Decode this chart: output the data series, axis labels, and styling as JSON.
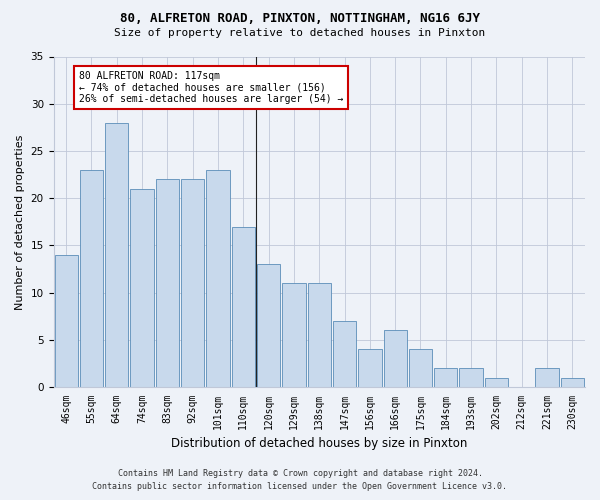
{
  "title1": "80, ALFRETON ROAD, PINXTON, NOTTINGHAM, NG16 6JY",
  "title2": "Size of property relative to detached houses in Pinxton",
  "xlabel": "Distribution of detached houses by size in Pinxton",
  "ylabel": "Number of detached properties",
  "categories": [
    "46sqm",
    "55sqm",
    "64sqm",
    "74sqm",
    "83sqm",
    "92sqm",
    "101sqm",
    "110sqm",
    "120sqm",
    "129sqm",
    "138sqm",
    "147sqm",
    "156sqm",
    "166sqm",
    "175sqm",
    "184sqm",
    "193sqm",
    "202sqm",
    "212sqm",
    "221sqm",
    "230sqm"
  ],
  "values": [
    14,
    23,
    28,
    21,
    22,
    22,
    23,
    17,
    13,
    11,
    11,
    7,
    4,
    6,
    4,
    2,
    2,
    1,
    0,
    2,
    1
  ],
  "bar_color": "#c8d9ec",
  "bar_edge_color": "#5b8db8",
  "vline_index": 8,
  "ylim": [
    0,
    35
  ],
  "yticks": [
    0,
    5,
    10,
    15,
    20,
    25,
    30,
    35
  ],
  "annotation_text": "80 ALFRETON ROAD: 117sqm\n← 74% of detached houses are smaller (156)\n26% of semi-detached houses are larger (54) →",
  "annotation_box_color": "#ffffff",
  "annotation_box_edgecolor": "#cc0000",
  "footer1": "Contains HM Land Registry data © Crown copyright and database right 2024.",
  "footer2": "Contains public sector information licensed under the Open Government Licence v3.0.",
  "background_color": "#eef2f8"
}
